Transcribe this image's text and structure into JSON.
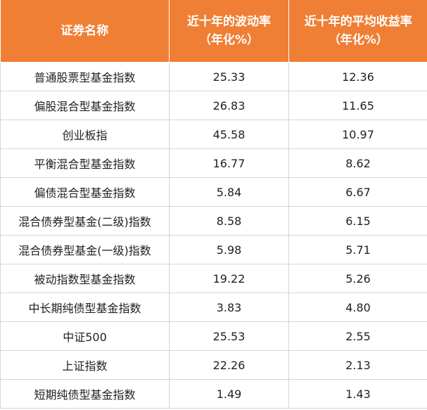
{
  "header": {
    "col1": "证券名称",
    "col2_line1": "近十年的波动率",
    "col2_line2": "（年化%）",
    "col3_line1": "近十年的平均收益率",
    "col3_line2": "（年化%）"
  },
  "rows": [
    {
      "name": "普通股票型基金指数",
      "volatility": "25.33",
      "return": "12.36"
    },
    {
      "name": "偏股混合型基金指数",
      "volatility": "26.83",
      "return": "11.65"
    },
    {
      "name": "创业板指",
      "volatility": "45.58",
      "return": "10.97"
    },
    {
      "name": "平衡混合型基金指数",
      "volatility": "16.77",
      "return": "8.62"
    },
    {
      "name": "偏债混合型基金指数",
      "volatility": "5.84",
      "return": "6.67"
    },
    {
      "name": "混合债券型基金(二级)指数",
      "volatility": "8.58",
      "return": "6.15"
    },
    {
      "name": "混合债券型基金(一级)指数",
      "volatility": "5.98",
      "return": "5.71"
    },
    {
      "name": "被动指数型基金指数",
      "volatility": "19.22",
      "return": "5.26"
    },
    {
      "name": "中长期纯债型基金指数",
      "volatility": "3.83",
      "return": "4.80"
    },
    {
      "name": "中证500",
      "volatility": "25.53",
      "return": "2.55"
    },
    {
      "name": "上证指数",
      "volatility": "22.26",
      "return": "2.13"
    },
    {
      "name": "短期纯债型基金指数",
      "volatility": "1.49",
      "return": "1.43"
    }
  ],
  "colors": {
    "header_bg": "#ef7f35",
    "header_text": "#ffffff",
    "grid": "#d6d6d6"
  }
}
